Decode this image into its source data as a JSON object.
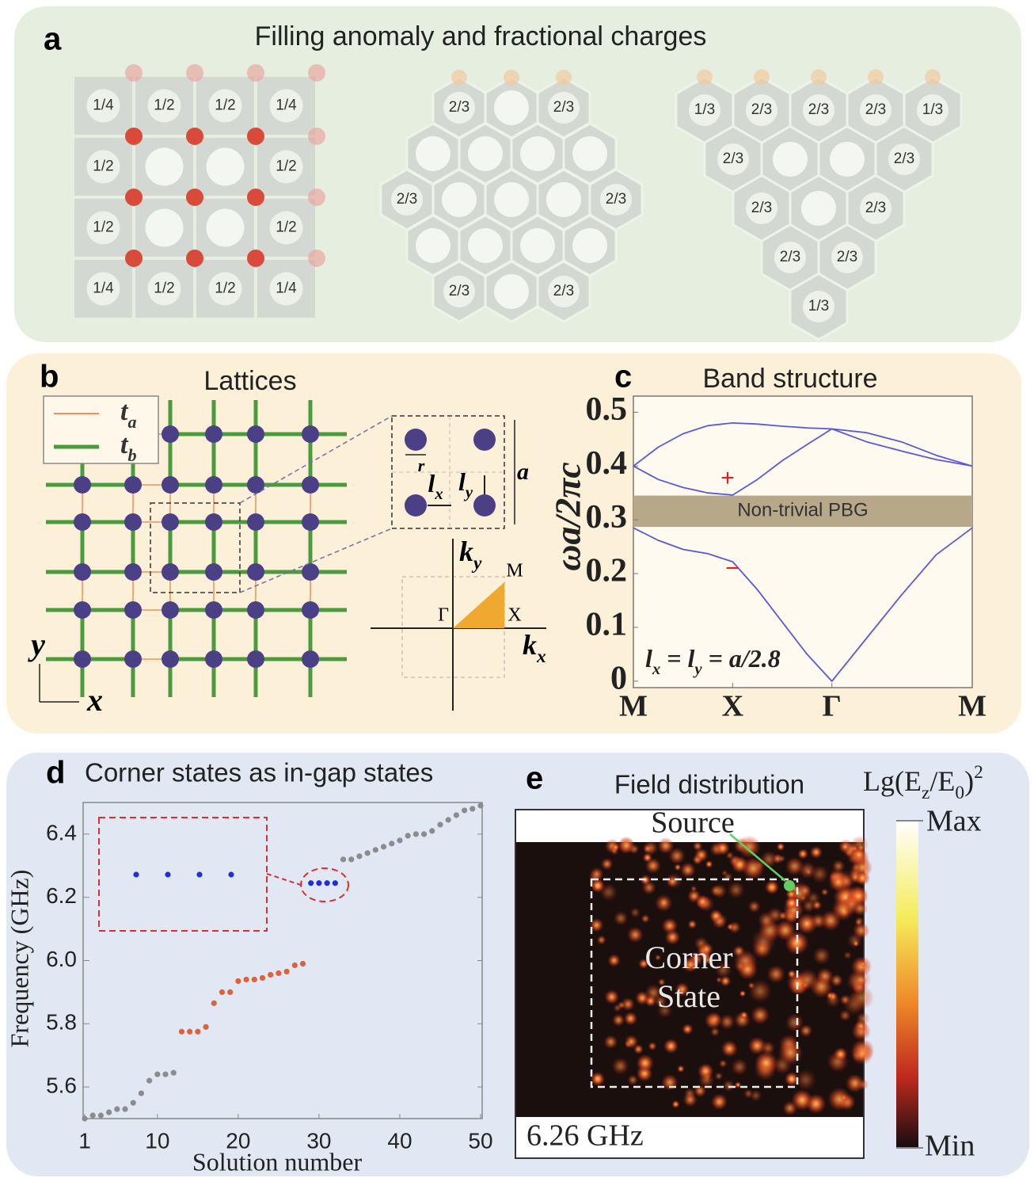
{
  "panel_a": {
    "label": "a",
    "title": "Filling anomaly and fractional charges",
    "square_lattice": [
      [
        "1/4",
        "1/2",
        "1/2",
        "1/4"
      ],
      [
        "1/2",
        null,
        null,
        "1/2"
      ],
      [
        "1/2",
        null,
        null,
        "1/2"
      ],
      [
        "1/4",
        "1/2",
        "1/2",
        "1/4"
      ]
    ],
    "hexagonal_lattice": [
      [
        "2/3",
        null,
        "2/3"
      ],
      [
        null,
        null,
        null,
        null
      ],
      [
        "2/3",
        null,
        null,
        null,
        "2/3"
      ],
      [
        null,
        null,
        null,
        null
      ],
      [
        "2/3",
        null,
        "2/3"
      ]
    ],
    "triangular_lattice": [
      [
        "1/3",
        "2/3",
        "2/3",
        "2/3",
        "1/3"
      ],
      [
        "2/3",
        null,
        null,
        "2/3"
      ],
      [
        "2/3",
        null,
        "2/3"
      ],
      [
        "2/3",
        "2/3"
      ],
      [
        "1/3"
      ]
    ]
  },
  "panel_b": {
    "label": "b",
    "title": "Lattices",
    "legend": [
      {
        "symbol": "t",
        "subscript": "a"
      },
      {
        "symbol": "t",
        "subscript": "b"
      }
    ],
    "axis_y": "y",
    "axis_x": "x",
    "inset": {
      "radius": "r",
      "lx": {
        "symbol": "l",
        "subscript": "x"
      },
      "ly": {
        "symbol": "l",
        "subscript": "y"
      },
      "period": "a"
    },
    "brillouin_zone": {
      "ky": {
        "symbol": "k",
        "subscript": "y"
      },
      "kx": {
        "symbol": "k",
        "subscript": "x"
      },
      "gamma": "Γ",
      "x_point": "X",
      "m_point": "M"
    }
  },
  "chart_data": [
    {
      "type": "line",
      "panel_label": "c",
      "title": "Band structure",
      "y_label": "ωa/2πc",
      "x": [
        0,
        0.25,
        0.5,
        0.75,
        1,
        1.25,
        1.5,
        1.75,
        2,
        2.35,
        2.7,
        3.05,
        3.414
      ],
      "xlim": [
        0,
        3.414
      ],
      "xticks": [
        {
          "value": 0,
          "label": "M"
        },
        {
          "value": 1,
          "label": "X"
        },
        {
          "value": 2,
          "label": "Γ"
        },
        {
          "value": 3.414,
          "label": "M"
        }
      ],
      "ylim": [
        -0.012,
        0.53
      ],
      "yticks": [
        0,
        0.1,
        0.2,
        0.3,
        0.4,
        0.5
      ],
      "series": [
        {
          "color": "#5a5ad8",
          "values": [
            0.285,
            0.262,
            0.245,
            0.237,
            0.222,
            0.17,
            0.11,
            0.05,
            0,
            0.08,
            0.16,
            0.235,
            0.285
          ]
        },
        {
          "color": "#5a5ad8",
          "values": [
            0.4,
            0.375,
            0.36,
            0.35,
            0.346,
            0.375,
            0.41,
            0.44,
            0.469,
            0.445,
            0.428,
            0.412,
            0.4
          ]
        },
        {
          "color": "#5a5ad8",
          "values": [
            0.4,
            0.435,
            0.46,
            0.475,
            0.48,
            0.478,
            0.474,
            0.471,
            0.469,
            0.462,
            0.445,
            0.42,
            0.4
          ]
        }
      ],
      "band_gap": {
        "range": [
          0.287,
          0.345
        ],
        "label": "Non-trivial PBG",
        "color": "#b8a88a"
      },
      "annotations": [
        "+",
        "−"
      ],
      "formula": [
        "l",
        "x",
        " = ",
        "l",
        "y",
        " = a/2.8"
      ]
    },
    {
      "type": "scatter",
      "panel_label": "d",
      "title": "Corner states as in-gap states",
      "x_label": "Solution number",
      "y_label": "Frequency (GHz)",
      "xlim": [
        1,
        50
      ],
      "xticks": [
        1,
        10,
        20,
        30,
        40,
        50
      ],
      "ylim": [
        5.5,
        6.5
      ],
      "yticks": [
        5.6,
        5.8,
        {
          "value": 6,
          "label": "6.0"
        },
        6.2,
        6.4
      ],
      "series": [
        {
          "color": "#8c8c8c",
          "x": [
            1,
            2,
            3,
            4,
            5,
            6,
            7,
            8,
            9,
            10,
            11,
            12
          ],
          "values": [
            5.5,
            5.51,
            5.51,
            5.52,
            5.53,
            5.53,
            5.55,
            5.58,
            5.62,
            5.64,
            5.64,
            5.645
          ]
        },
        {
          "color": "#e0603a",
          "x": [
            13,
            14,
            15,
            16,
            17,
            18,
            19,
            20,
            21,
            22,
            23,
            24,
            25,
            26,
            27,
            28
          ],
          "values": [
            5.775,
            5.775,
            5.775,
            5.79,
            5.865,
            5.9,
            5.9,
            5.935,
            5.94,
            5.94,
            5.945,
            5.955,
            5.96,
            5.965,
            5.985,
            5.99
          ]
        },
        {
          "color": "#1f2fe0",
          "x": [
            29,
            30,
            31,
            32
          ],
          "values": [
            6.245,
            6.245,
            6.245,
            6.245
          ]
        },
        {
          "color": "#8c8c8c",
          "x": [
            33,
            34,
            35,
            36,
            37,
            38,
            39,
            40,
            41,
            42,
            43,
            44,
            45,
            46,
            47,
            48,
            49,
            50
          ],
          "values": [
            6.32,
            6.32,
            6.33,
            6.34,
            6.35,
            6.36,
            6.37,
            6.38,
            6.395,
            6.4,
            6.4,
            6.41,
            6.43,
            6.445,
            6.46,
            6.475,
            6.48,
            6.49
          ]
        }
      ]
    }
  ],
  "panel_e": {
    "label": "e",
    "title": "Field distribution",
    "colorbar_title": [
      "Lg(E",
      "z",
      "/E",
      "0",
      ")",
      "2"
    ],
    "colorbar_max": "Max",
    "colorbar_min": "Min",
    "source": "Source",
    "region_label": [
      "Corner",
      "State"
    ],
    "frequency": "6.26 GHz"
  }
}
